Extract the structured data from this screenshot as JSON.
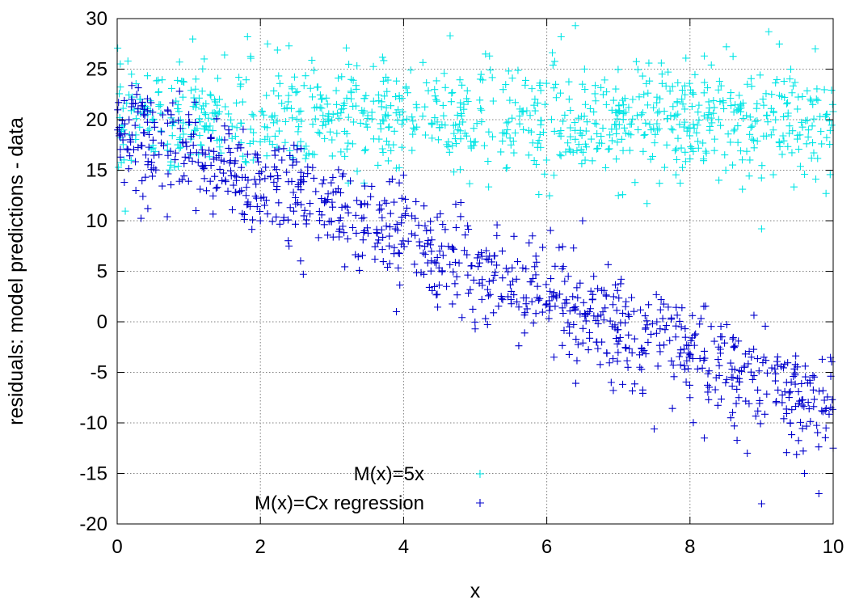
{
  "chart_data": {
    "type": "scatter",
    "xlabel": "x",
    "ylabel": "residuals: model predictions - data",
    "xlim": [
      0,
      10
    ],
    "ylim": [
      -20,
      30
    ],
    "xticks": [
      "0",
      "2",
      "4",
      "6",
      "8",
      "10"
    ],
    "yticks": [
      "-20",
      "-15",
      "-10",
      "-5",
      "0",
      "5",
      "10",
      "15",
      "20",
      "25",
      "30"
    ],
    "grid": true,
    "legend_position": "bottom-center",
    "series": [
      {
        "name": "M(x)=5x",
        "color": "#00e5e5",
        "marker": "plus",
        "trend": {
          "intercept": 20.0,
          "slope": 0.0
        },
        "spread_sd": 2.6,
        "points": [
          [
            0.05,
            18.2
          ],
          [
            0.15,
            25.8
          ],
          [
            0.2,
            24.5
          ],
          [
            0.4,
            21.3
          ],
          [
            0.5,
            17.2
          ],
          [
            0.9,
            23.8
          ],
          [
            1.0,
            19.5
          ],
          [
            1.3,
            22.5
          ],
          [
            1.5,
            26.4
          ],
          [
            1.9,
            16.0
          ],
          [
            2.1,
            27.5
          ],
          [
            2.4,
            27.3
          ],
          [
            2.7,
            23.1
          ],
          [
            3.0,
            18.0
          ],
          [
            3.2,
            27.1
          ],
          [
            3.5,
            20.4
          ],
          [
            3.9,
            15.2
          ],
          [
            4.1,
            24.9
          ],
          [
            4.4,
            19.6
          ],
          [
            4.65,
            28.3
          ],
          [
            4.9,
            21.8
          ],
          [
            5.2,
            26.3
          ],
          [
            5.5,
            17.5
          ],
          [
            5.9,
            23.4
          ],
          [
            6.1,
            14.5
          ],
          [
            6.2,
            28.2
          ],
          [
            6.4,
            29.3
          ],
          [
            6.7,
            18.6
          ],
          [
            7.0,
            12.5
          ],
          [
            7.2,
            22.0
          ],
          [
            7.4,
            11.7
          ],
          [
            7.6,
            25.6
          ],
          [
            8.0,
            19.2
          ],
          [
            8.2,
            26.3
          ],
          [
            8.5,
            15.0
          ],
          [
            8.8,
            23.5
          ],
          [
            9.0,
            9.2
          ],
          [
            9.1,
            28.7
          ],
          [
            9.3,
            18.4
          ],
          [
            9.6,
            14.6
          ],
          [
            9.75,
            27.0
          ],
          [
            9.9,
            12.7
          ],
          [
            10.0,
            20.8
          ]
        ]
      },
      {
        "name": "M(x)=Cx regression",
        "color": "#0000cc",
        "marker": "plus",
        "trend": {
          "intercept": 19.5,
          "slope": -2.85
        },
        "spread_sd": 2.5,
        "points": [
          [
            0.05,
            18.5
          ],
          [
            0.1,
            13.8
          ],
          [
            0.2,
            22.0
          ],
          [
            0.4,
            16.5
          ],
          [
            0.7,
            10.4
          ],
          [
            1.0,
            20.5
          ],
          [
            1.1,
            11.0
          ],
          [
            1.5,
            18.0
          ],
          [
            1.8,
            12.5
          ],
          [
            2.0,
            10.0
          ],
          [
            2.3,
            16.0
          ],
          [
            2.4,
            7.5
          ],
          [
            2.6,
            4.7
          ],
          [
            2.9,
            12.0
          ],
          [
            3.1,
            8.4
          ],
          [
            3.4,
            11.6
          ],
          [
            3.6,
            6.2
          ],
          [
            3.9,
            1.0
          ],
          [
            4.0,
            14.5
          ],
          [
            4.3,
            9.5
          ],
          [
            4.6,
            3.5
          ],
          [
            4.8,
            11.8
          ],
          [
            5.0,
            -0.7
          ],
          [
            5.2,
            6.5
          ],
          [
            5.5,
            2.2
          ],
          [
            5.8,
            8.5
          ],
          [
            6.1,
            -3.5
          ],
          [
            6.3,
            4.5
          ],
          [
            6.5,
            10.0
          ],
          [
            6.7,
            -2.0
          ],
          [
            6.9,
            -6.0
          ],
          [
            7.1,
            1.5
          ],
          [
            7.3,
            -4.5
          ],
          [
            7.5,
            -10.6
          ],
          [
            7.8,
            -1.5
          ],
          [
            8.0,
            -7.5
          ],
          [
            8.2,
            -11.5
          ],
          [
            8.4,
            -2.5
          ],
          [
            8.6,
            -5.5
          ],
          [
            8.8,
            -13.0
          ],
          [
            9.0,
            -18.0
          ],
          [
            9.2,
            -8.0
          ],
          [
            9.4,
            -10.0
          ],
          [
            9.6,
            -15.0
          ],
          [
            9.8,
            -17.0
          ],
          [
            9.9,
            -10.5
          ],
          [
            10.0,
            -12.5
          ]
        ]
      }
    ]
  }
}
